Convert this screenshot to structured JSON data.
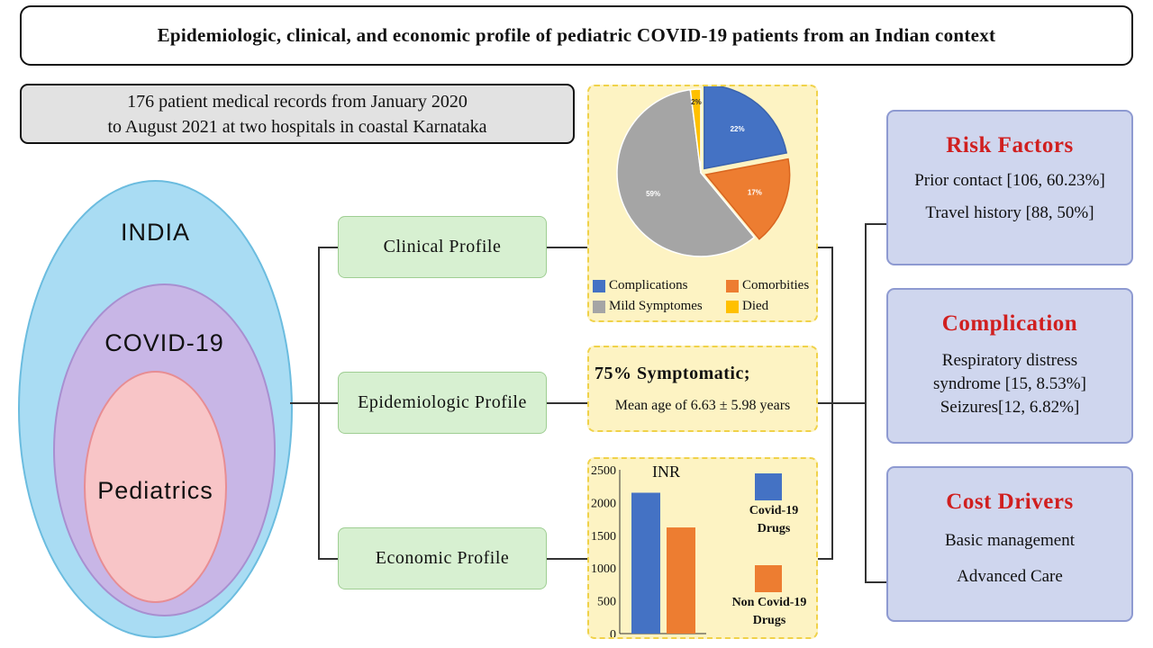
{
  "title": "Epidemiologic, clinical, and economic profile of pediatric COVID-19 patients from an Indian context",
  "records": {
    "line1": "176 patient medical records from January 2020",
    "line2": "to August 2021 at two hospitals in coastal Karnataka"
  },
  "venn": {
    "outer": "INDIA",
    "middle": "COVID-19",
    "inner": "Pediatrics",
    "colors": {
      "outer": "#a9dcf3",
      "middle": "#c8b6e6",
      "inner": "#f8c5c7"
    }
  },
  "profiles": {
    "clinical": "Clinical Profile",
    "epidemiologic": "Epidemiologic Profile",
    "economic": "Economic Profile"
  },
  "epi": {
    "line1": "75% Symptomatic;",
    "line2": "Mean age of 6.63 ± 5.98 years"
  },
  "risk": {
    "title": "Risk Factors",
    "items": [
      "Prior contact [106, 60.23%]",
      "Travel history [88, 50%]"
    ]
  },
  "complication": {
    "title": "Complication",
    "items": [
      "Respiratory distress",
      "syndrome [15, 8.53%]",
      "Seizures[12, 6.82%]"
    ]
  },
  "cost": {
    "title": "Cost Drivers",
    "items": [
      "Basic management",
      "Advanced Care"
    ]
  },
  "chart_data": [
    {
      "type": "pie",
      "title": "",
      "categories": [
        "Complications",
        "Comorbities",
        "Mild Symptomes",
        "Died"
      ],
      "values": [
        22,
        17,
        59,
        2
      ],
      "labels": [
        "22%",
        "17%",
        "59%",
        "2%"
      ],
      "colors": [
        "#4472c4",
        "#ed7d31",
        "#a5a5a5",
        "#ffc000"
      ],
      "legend": "bottom"
    },
    {
      "type": "bar",
      "title": "INR",
      "categories": [
        "Covid-19 Drugs",
        "Non Covid-19 Drugs"
      ],
      "legend_labels": [
        [
          "Covid-19",
          "Drugs"
        ],
        [
          "Non Covid-19",
          "Drugs"
        ]
      ],
      "values": [
        2150,
        1620
      ],
      "colors": [
        "#4472c4",
        "#ed7d31"
      ],
      "ylim": [
        0,
        2500
      ],
      "yticks": [
        0,
        500,
        1000,
        1500,
        2000,
        2500
      ],
      "legend": "right"
    }
  ]
}
